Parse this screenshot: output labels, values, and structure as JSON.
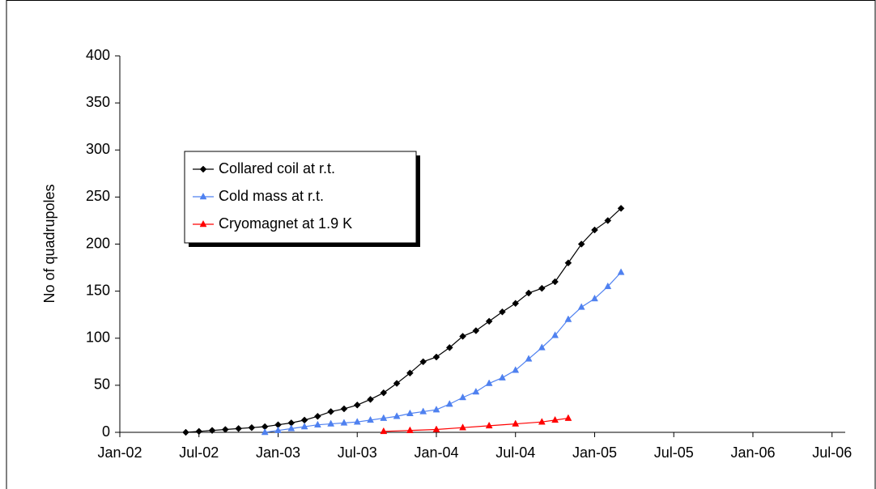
{
  "chart_data": {
    "type": "line",
    "y_label": "No of quadrupoles",
    "xlim": [
      "2002-01",
      "2006-08"
    ],
    "xticks": [
      {
        "value": "2002-01",
        "label": "Jan-02"
      },
      {
        "value": "2002-07",
        "label": "Jul-02"
      },
      {
        "value": "2003-01",
        "label": "Jan-03"
      },
      {
        "value": "2003-07",
        "label": "Jul-03"
      },
      {
        "value": "2004-01",
        "label": "Jan-04"
      },
      {
        "value": "2004-07",
        "label": "Jul-04"
      },
      {
        "value": "2005-01",
        "label": "Jan-05"
      },
      {
        "value": "2005-07",
        "label": "Jul-05"
      },
      {
        "value": "2006-01",
        "label": "Jan-06"
      },
      {
        "value": "2006-07",
        "label": "Jul-06"
      }
    ],
    "ylim": [
      0,
      400
    ],
    "yticks": [
      0,
      50,
      100,
      150,
      200,
      250,
      300,
      350,
      400
    ],
    "legend": "upper left",
    "series": [
      {
        "name": "Collared coil at r.t.",
        "color": "#000000",
        "marker": "diamond",
        "x": [
          "2002-06",
          "2002-07",
          "2002-08",
          "2002-09",
          "2002-10",
          "2002-11",
          "2002-12",
          "2003-01",
          "2003-02",
          "2003-03",
          "2003-04",
          "2003-05",
          "2003-06",
          "2003-07",
          "2003-08",
          "2003-09",
          "2003-10",
          "2003-11",
          "2003-12",
          "2004-01",
          "2004-02",
          "2004-03",
          "2004-04",
          "2004-05",
          "2004-06",
          "2004-07",
          "2004-08",
          "2004-09",
          "2004-10",
          "2004-11",
          "2004-12",
          "2005-01",
          "2005-02",
          "2005-03"
        ],
        "values": [
          0,
          1,
          2,
          3,
          4,
          5,
          6,
          8,
          10,
          13,
          17,
          22,
          25,
          29,
          35,
          42,
          52,
          63,
          75,
          80,
          90,
          102,
          108,
          118,
          128,
          137,
          148,
          153,
          160,
          180,
          200,
          215,
          225,
          238
        ]
      },
      {
        "name": "Cold mass at r.t.",
        "color": "#4f81f0",
        "marker": "triangle",
        "x": [
          "2002-12",
          "2003-01",
          "2003-02",
          "2003-03",
          "2003-04",
          "2003-05",
          "2003-06",
          "2003-07",
          "2003-08",
          "2003-09",
          "2003-10",
          "2003-11",
          "2003-12",
          "2004-01",
          "2004-02",
          "2004-03",
          "2004-04",
          "2004-05",
          "2004-06",
          "2004-07",
          "2004-08",
          "2004-09",
          "2004-10",
          "2004-11",
          "2004-12",
          "2005-01",
          "2005-02",
          "2005-03"
        ],
        "values": [
          0,
          2,
          4,
          6,
          8,
          9,
          10,
          11,
          13,
          15,
          17,
          20,
          22,
          24,
          30,
          37,
          43,
          52,
          58,
          66,
          78,
          90,
          103,
          120,
          133,
          142,
          155,
          170
        ]
      },
      {
        "name": "Cryomagnet at 1.9 K",
        "color": "#ff0000",
        "marker": "triangle",
        "x": [
          "2003-09",
          "2003-11",
          "2004-01",
          "2004-03",
          "2004-05",
          "2004-07",
          "2004-09",
          "2004-10",
          "2004-11"
        ],
        "values": [
          1,
          2,
          3,
          5,
          7,
          9,
          11,
          13,
          15
        ]
      }
    ]
  }
}
